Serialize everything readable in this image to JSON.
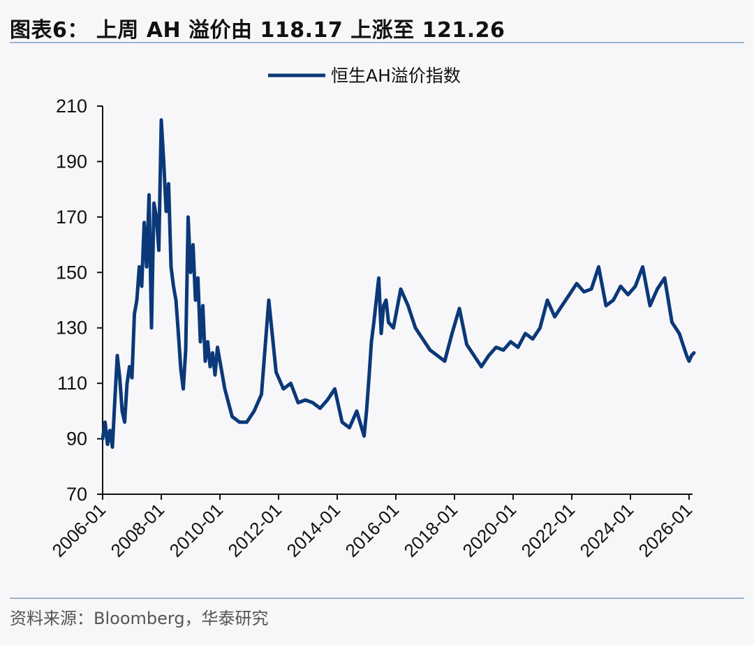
{
  "header": {
    "title": "图表6： 上周 AH 溢价由 118.17 上涨至 121.26"
  },
  "footer": {
    "source": "资料来源：Bloomberg，华泰研究"
  },
  "colors": {
    "series": "#0b3878",
    "rule": "#9db4cc"
  },
  "chart_data": {
    "type": "line",
    "title": "",
    "xlabel": "",
    "ylabel": "",
    "ylim": [
      70,
      210
    ],
    "yticks": [
      70,
      90,
      110,
      130,
      150,
      170,
      190,
      210
    ],
    "xlim": [
      "2006-01",
      "2026-03"
    ],
    "xticks": [
      "2006-01",
      "2008-01",
      "2010-01",
      "2012-01",
      "2014-01",
      "2016-01",
      "2018-01",
      "2020-01",
      "2022-01",
      "2024-01",
      "2026-01"
    ],
    "grid": false,
    "legend_position": "top-center",
    "series": [
      {
        "name": "恒生AH溢价指数",
        "x": [
          "2006-01",
          "2006-02",
          "2006-03",
          "2006-04",
          "2006-05",
          "2006-06",
          "2006-07",
          "2006-08",
          "2006-09",
          "2006-10",
          "2006-11",
          "2006-12",
          "2007-01",
          "2007-02",
          "2007-03",
          "2007-04",
          "2007-05",
          "2007-06",
          "2007-07",
          "2007-08",
          "2007-09",
          "2007-10",
          "2007-11",
          "2007-12",
          "2008-01",
          "2008-02",
          "2008-03",
          "2008-04",
          "2008-05",
          "2008-06",
          "2008-07",
          "2008-08",
          "2008-09",
          "2008-10",
          "2008-11",
          "2008-12",
          "2009-01",
          "2009-02",
          "2009-03",
          "2009-04",
          "2009-05",
          "2009-06",
          "2009-07",
          "2009-08",
          "2009-09",
          "2009-10",
          "2009-11",
          "2009-12",
          "2010-01",
          "2010-03",
          "2010-06",
          "2010-09",
          "2010-12",
          "2011-03",
          "2011-06",
          "2011-09",
          "2011-12",
          "2012-03",
          "2012-06",
          "2012-09",
          "2012-12",
          "2013-03",
          "2013-06",
          "2013-09",
          "2013-12",
          "2014-03",
          "2014-06",
          "2014-09",
          "2014-12",
          "2015-01",
          "2015-02",
          "2015-03",
          "2015-04",
          "2015-05",
          "2015-06",
          "2015-07",
          "2015-08",
          "2015-09",
          "2015-10",
          "2015-12",
          "2016-03",
          "2016-06",
          "2016-09",
          "2016-12",
          "2017-03",
          "2017-06",
          "2017-09",
          "2017-12",
          "2018-03",
          "2018-06",
          "2018-09",
          "2018-12",
          "2019-03",
          "2019-06",
          "2019-09",
          "2019-12",
          "2020-03",
          "2020-06",
          "2020-09",
          "2020-12",
          "2021-03",
          "2021-06",
          "2021-09",
          "2021-12",
          "2022-03",
          "2022-06",
          "2022-09",
          "2022-12",
          "2023-03",
          "2023-06",
          "2023-09",
          "2023-12",
          "2024-03",
          "2024-06",
          "2024-09",
          "2024-12",
          "2025-03",
          "2025-06",
          "2025-09",
          "2025-12",
          "2026-01",
          "2026-02",
          "2026-03"
        ],
        "values": [
          90,
          96,
          88,
          93,
          87,
          104,
          120,
          112,
          100,
          96,
          110,
          116,
          112,
          135,
          140,
          152,
          145,
          168,
          152,
          178,
          130,
          175,
          170,
          158,
          205,
          190,
          172,
          182,
          152,
          145,
          140,
          128,
          115,
          108,
          122,
          170,
          150,
          160,
          140,
          148,
          125,
          138,
          118,
          125,
          116,
          121,
          113,
          123,
          118,
          108,
          98,
          96,
          96,
          100,
          106,
          140,
          114,
          108,
          110,
          103,
          104,
          103,
          101,
          104,
          108,
          96,
          94,
          100,
          91,
          100,
          112,
          125,
          132,
          140,
          148,
          128,
          138,
          140,
          132,
          130,
          144,
          138,
          130,
          126,
          122,
          120,
          118,
          128,
          137,
          124,
          120,
          116,
          120,
          123,
          122,
          125,
          123,
          128,
          126,
          130,
          140,
          134,
          138,
          142,
          146,
          143,
          144,
          152,
          138,
          140,
          145,
          142,
          145,
          152,
          138,
          144,
          148,
          132,
          128,
          120,
          118,
          120,
          121
        ]
      }
    ]
  }
}
